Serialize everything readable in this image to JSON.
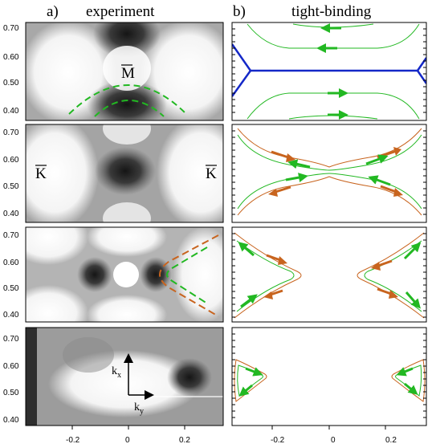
{
  "headers": {
    "left_letter": "a)",
    "left_title": "experiment",
    "right_letter": "b)",
    "right_title": "tight-binding"
  },
  "y_ticks": [
    "0.70",
    "0.60",
    "0.50",
    "0.40"
  ],
  "x_ticks": [
    "-0.2",
    "0",
    "0.2"
  ],
  "symbols": {
    "m_point": "M",
    "k_point": "K"
  },
  "axes_labels": {
    "kx": "k",
    "kx_sub": "x",
    "ky": "k",
    "ky_sub": "y"
  },
  "colors": {
    "green": "#22b822",
    "orange": "#c8641e",
    "blue": "#1428c8"
  }
}
